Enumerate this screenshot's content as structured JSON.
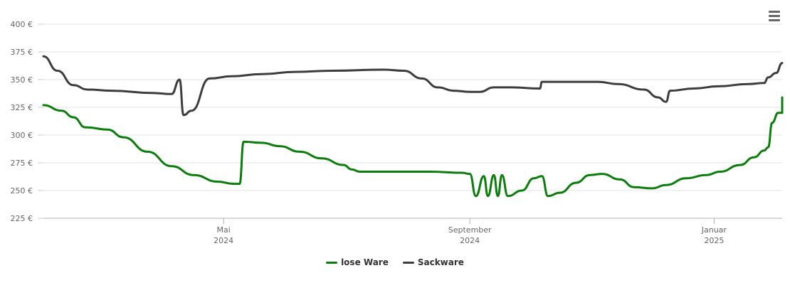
{
  "chart_data": {
    "type": "line",
    "title": "",
    "xlabel": "",
    "ylabel": "",
    "ylim": [
      225,
      400
    ],
    "xlim": [
      "2024-02-01",
      "2025-02-04"
    ],
    "y_ticks": [
      {
        "value": 225,
        "label": "225 €"
      },
      {
        "value": 250,
        "label": "250 €"
      },
      {
        "value": 275,
        "label": "275 €"
      },
      {
        "value": 300,
        "label": "300 €"
      },
      {
        "value": 325,
        "label": "325 €"
      },
      {
        "value": 350,
        "label": "350 €"
      },
      {
        "value": 375,
        "label": "375 €"
      },
      {
        "value": 400,
        "label": "400 €"
      }
    ],
    "x_ticks": [
      {
        "date": "2024-05-01",
        "label": "Mai",
        "sublabel": "2024"
      },
      {
        "date": "2024-09-01",
        "label": "September",
        "sublabel": "2024"
      },
      {
        "date": "2025-01-01",
        "label": "Januar",
        "sublabel": "2025"
      }
    ],
    "grid": true,
    "legend_position": "bottom-center",
    "series": [
      {
        "name": "lose Ware",
        "color": "#0a7d0a",
        "points": [
          [
            "2024-02-01",
            327
          ],
          [
            "2024-02-10",
            322
          ],
          [
            "2024-02-16",
            316
          ],
          [
            "2024-02-22",
            307
          ],
          [
            "2024-03-04",
            305
          ],
          [
            "2024-03-12",
            298
          ],
          [
            "2024-03-24",
            285
          ],
          [
            "2024-04-05",
            272
          ],
          [
            "2024-04-16",
            264
          ],
          [
            "2024-04-28",
            258
          ],
          [
            "2024-05-06",
            256
          ],
          [
            "2024-05-09",
            256
          ],
          [
            "2024-05-11",
            294
          ],
          [
            "2024-05-20",
            293
          ],
          [
            "2024-05-29",
            290
          ],
          [
            "2024-06-08",
            285
          ],
          [
            "2024-06-19",
            279
          ],
          [
            "2024-06-30",
            273
          ],
          [
            "2024-07-04",
            269
          ],
          [
            "2024-07-08",
            267
          ],
          [
            "2024-07-25",
            267
          ],
          [
            "2024-08-12",
            267
          ],
          [
            "2024-08-28",
            266
          ],
          [
            "2024-09-01",
            265
          ],
          [
            "2024-09-04",
            245
          ],
          [
            "2024-09-08",
            263
          ],
          [
            "2024-09-10",
            245
          ],
          [
            "2024-09-13",
            264
          ],
          [
            "2024-09-15",
            245
          ],
          [
            "2024-09-17",
            264
          ],
          [
            "2024-09-20",
            245
          ],
          [
            "2024-09-27",
            250
          ],
          [
            "2024-10-03",
            261
          ],
          [
            "2024-10-07",
            263
          ],
          [
            "2024-10-10",
            245
          ],
          [
            "2024-10-16",
            248
          ],
          [
            "2024-10-24",
            257
          ],
          [
            "2024-10-31",
            264
          ],
          [
            "2024-11-06",
            265
          ],
          [
            "2024-11-15",
            260
          ],
          [
            "2024-11-22",
            253
          ],
          [
            "2024-12-01",
            252
          ],
          [
            "2024-12-08",
            255
          ],
          [
            "2024-12-18",
            261
          ],
          [
            "2024-12-28",
            264
          ],
          [
            "2025-01-04",
            267
          ],
          [
            "2025-01-14",
            273
          ],
          [
            "2025-01-21",
            280
          ],
          [
            "2025-01-26",
            286
          ],
          [
            "2025-01-28",
            289
          ],
          [
            "2025-01-30",
            311
          ],
          [
            "2025-02-02",
            320
          ],
          [
            "2025-02-04",
            320
          ],
          [
            "2025-02-04",
            334
          ]
        ]
      },
      {
        "name": "Sackware",
        "color": "#3d3d3d",
        "points": [
          [
            "2024-02-01",
            371
          ],
          [
            "2024-02-08",
            358
          ],
          [
            "2024-02-16",
            345
          ],
          [
            "2024-02-23",
            341
          ],
          [
            "2024-03-06",
            340
          ],
          [
            "2024-03-26",
            338
          ],
          [
            "2024-04-05",
            337
          ],
          [
            "2024-04-09",
            350
          ],
          [
            "2024-04-11",
            318
          ],
          [
            "2024-04-15",
            322
          ],
          [
            "2024-04-24",
            351
          ],
          [
            "2024-05-05",
            353
          ],
          [
            "2024-05-20",
            355
          ],
          [
            "2024-06-06",
            357
          ],
          [
            "2024-06-24",
            358
          ],
          [
            "2024-07-20",
            359
          ],
          [
            "2024-07-30",
            358
          ],
          [
            "2024-08-08",
            351
          ],
          [
            "2024-08-16",
            343
          ],
          [
            "2024-08-24",
            340
          ],
          [
            "2024-09-01",
            339
          ],
          [
            "2024-09-06",
            339
          ],
          [
            "2024-09-13",
            343
          ],
          [
            "2024-09-22",
            343
          ],
          [
            "2024-10-06",
            342
          ],
          [
            "2024-10-07",
            348
          ],
          [
            "2024-10-25",
            348
          ],
          [
            "2024-11-04",
            348
          ],
          [
            "2024-11-14",
            346
          ],
          [
            "2024-11-27",
            341
          ],
          [
            "2024-12-04",
            334
          ],
          [
            "2024-12-08",
            330
          ],
          [
            "2024-12-10",
            340
          ],
          [
            "2024-12-22",
            342
          ],
          [
            "2025-01-03",
            344
          ],
          [
            "2025-01-18",
            346
          ],
          [
            "2025-01-26",
            347
          ],
          [
            "2025-01-28",
            352
          ],
          [
            "2025-02-01",
            356
          ],
          [
            "2025-02-04",
            365
          ]
        ]
      }
    ]
  },
  "toolbar": {
    "menu_icon": "hamburger-menu-icon"
  }
}
